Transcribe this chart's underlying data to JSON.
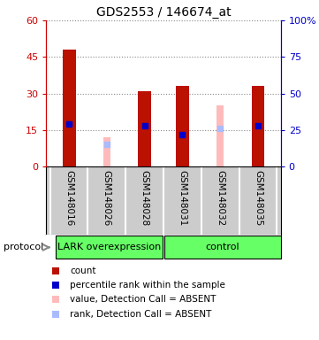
{
  "title": "GDS2553 / 146674_at",
  "samples": [
    "GSM148016",
    "GSM148026",
    "GSM148028",
    "GSM148031",
    "GSM148032",
    "GSM148035"
  ],
  "count_values": [
    48,
    0,
    31,
    33,
    0,
    33
  ],
  "rank_values": [
    29,
    0,
    28,
    22,
    0,
    28
  ],
  "absent_value": [
    0,
    12,
    0,
    0,
    25,
    0
  ],
  "absent_rank": [
    0,
    15,
    0,
    0,
    26,
    0
  ],
  "ylim_left": [
    0,
    60
  ],
  "ylim_right": [
    0,
    100
  ],
  "yticks_left": [
    0,
    15,
    30,
    45,
    60
  ],
  "ytick_labels_left": [
    "0",
    "15",
    "30",
    "45",
    "60"
  ],
  "ytick_labels_right": [
    "0",
    "25",
    "50",
    "75",
    "100%"
  ],
  "yticks_right": [
    0,
    25,
    50,
    75,
    100
  ],
  "left_axis_color": "#cc0000",
  "right_axis_color": "#0000cc",
  "bar_color_red": "#bb1100",
  "bar_color_blue": "#0000cc",
  "bar_color_pink": "#ffbbbb",
  "bar_color_lightblue": "#aabbff",
  "group1_label": "LARK overexpression",
  "group2_label": "control",
  "protocol_label": "protocol",
  "legend_items": [
    {
      "color": "#bb1100",
      "label": "count"
    },
    {
      "color": "#0000cc",
      "label": "percentile rank within the sample"
    },
    {
      "color": "#ffbbbb",
      "label": "value, Detection Call = ABSENT"
    },
    {
      "color": "#aabbff",
      "label": "rank, Detection Call = ABSENT"
    }
  ],
  "bar_width": 0.35,
  "rank_marker_size": 5,
  "background_color": "#ffffff",
  "label_area_color": "#cccccc",
  "group_area_color": "#66ff66"
}
